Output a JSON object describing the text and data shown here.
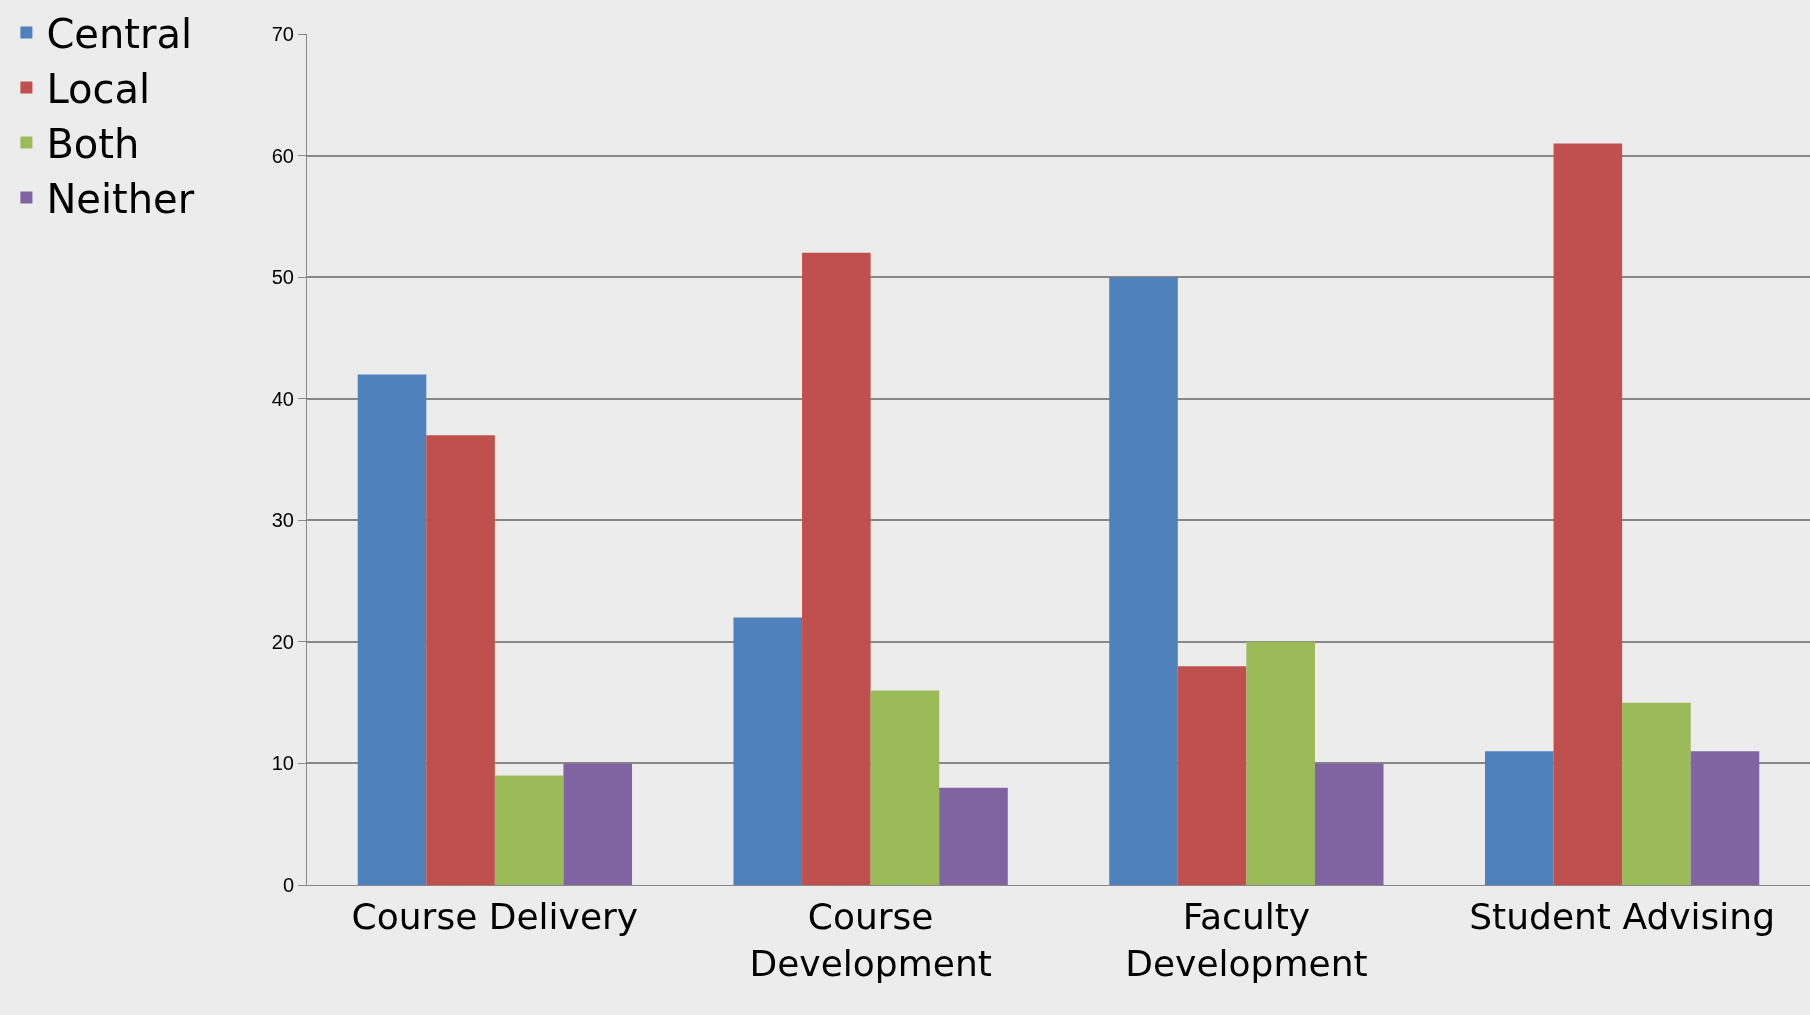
{
  "chart_data": {
    "type": "bar",
    "categories": [
      "Course Delivery",
      "Course Development",
      "Faculty Development",
      "Student Advising"
    ],
    "series": [
      {
        "name": "Central",
        "color": "#4f81bd",
        "values": [
          42,
          22,
          50,
          11
        ]
      },
      {
        "name": "Local",
        "color": "#c0504d",
        "values": [
          37,
          52,
          18,
          61
        ]
      },
      {
        "name": "Both",
        "color": "#9bbb59",
        "values": [
          9,
          16,
          20,
          15
        ]
      },
      {
        "name": "Neither",
        "color": "#8064a2",
        "values": [
          10,
          8,
          10,
          11
        ]
      }
    ],
    "ylim": [
      0,
      70
    ],
    "yticks": [
      0,
      10,
      20,
      30,
      40,
      50,
      60,
      70
    ],
    "grid": "y",
    "legend": "top left"
  }
}
